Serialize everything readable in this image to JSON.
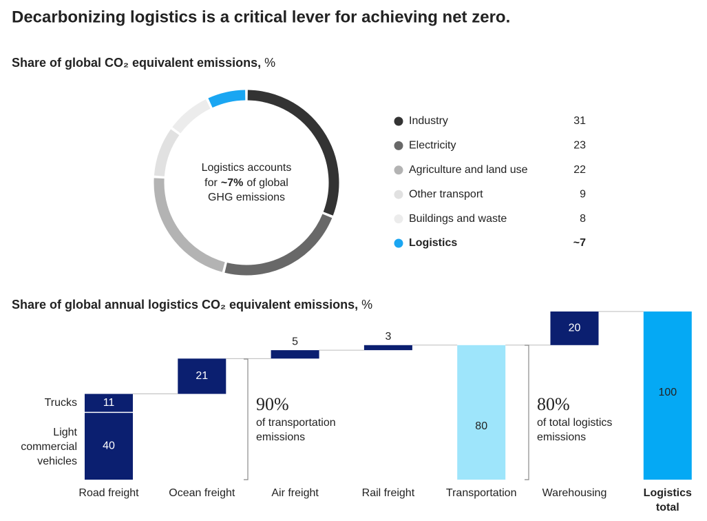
{
  "page_title": "Decarbonizing logistics is a critical lever for achieving net zero.",
  "chart_data": [
    {
      "type": "donut",
      "title": "Share of global CO₂ equivalent emissions,",
      "unit": "%",
      "categories": [
        "Industry",
        "Electricity",
        "Agriculture and land use",
        "Other transport",
        "Buildings and waste",
        "Logistics"
      ],
      "values": [
        31,
        23,
        22,
        9,
        8,
        7
      ],
      "value_labels": [
        "31",
        "23",
        "22",
        "9",
        "8",
        "~7"
      ],
      "colors": [
        "#333333",
        "#686868",
        "#b3b3b3",
        "#e1e1e1",
        "#ececec",
        "#1aa6f2"
      ],
      "highlight": "Logistics",
      "center_text": {
        "line1": "Logistics accounts",
        "line2_before": "for",
        "line2_bold": "~7%",
        "line2_after": "of global",
        "line3": "GHG emissions"
      }
    },
    {
      "type": "waterfall",
      "title": "Share of global annual logistics CO₂ equivalent emissions,",
      "unit": "%",
      "categories": [
        "Road freight",
        "Ocean freight",
        "Air freight",
        "Rail freight",
        "Transportation",
        "Warehousing",
        "Logistics total"
      ],
      "segments": [
        {
          "name": "Light commercial vehicles",
          "value": 40
        },
        {
          "name": "Trucks",
          "value": 11
        }
      ],
      "values": [
        null,
        21,
        5,
        3,
        80,
        20,
        100
      ],
      "kinds": [
        "step",
        "step",
        "step",
        "step",
        "subtotal",
        "step",
        "total"
      ],
      "colors": {
        "step": "#0b1f70",
        "subtotal": "#9ee5fb",
        "total": "#05a9f4"
      },
      "ylim": [
        0,
        100
      ],
      "annotations": [
        {
          "value_text": "90%",
          "lines": [
            "of transportation",
            "emissions"
          ]
        },
        {
          "value_text": "80%",
          "lines": [
            "of total logistics",
            "emissions"
          ]
        }
      ]
    }
  ]
}
